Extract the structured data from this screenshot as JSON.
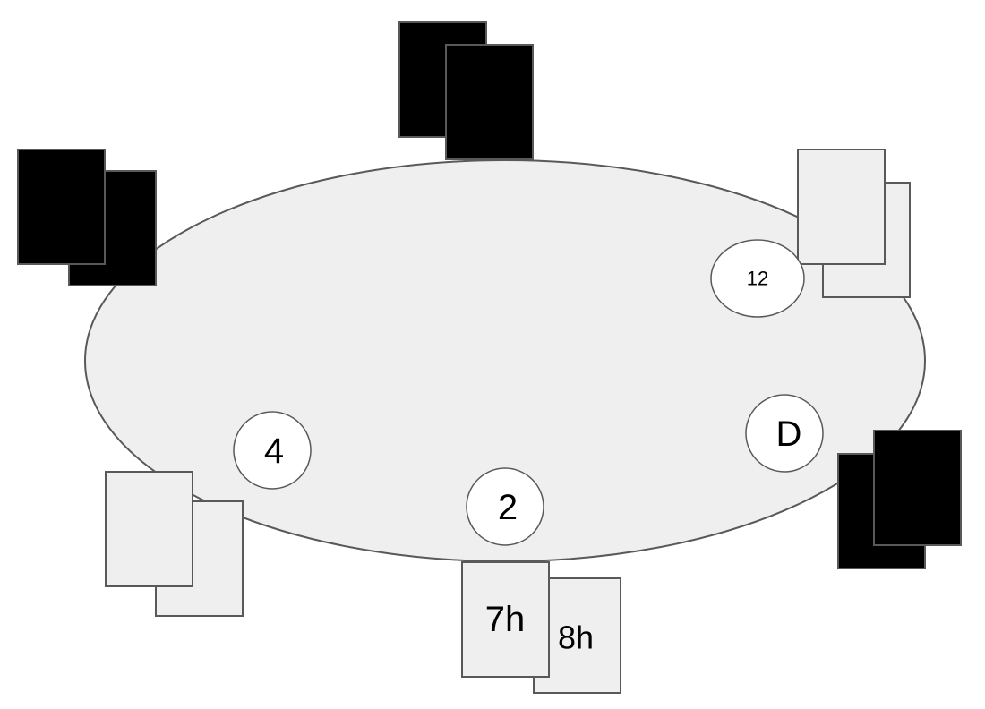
{
  "table": {
    "felt_color": "#efefef",
    "border_color": "#595959"
  },
  "card_back_color": "#000000",
  "card_face_color": "#efefef",
  "hero_cards": {
    "card1": "7h",
    "card2": "8h"
  },
  "chips": {
    "top_right_bet": "12",
    "left_bet": "4",
    "bottom_bet": "2",
    "dealer_button": "D"
  }
}
